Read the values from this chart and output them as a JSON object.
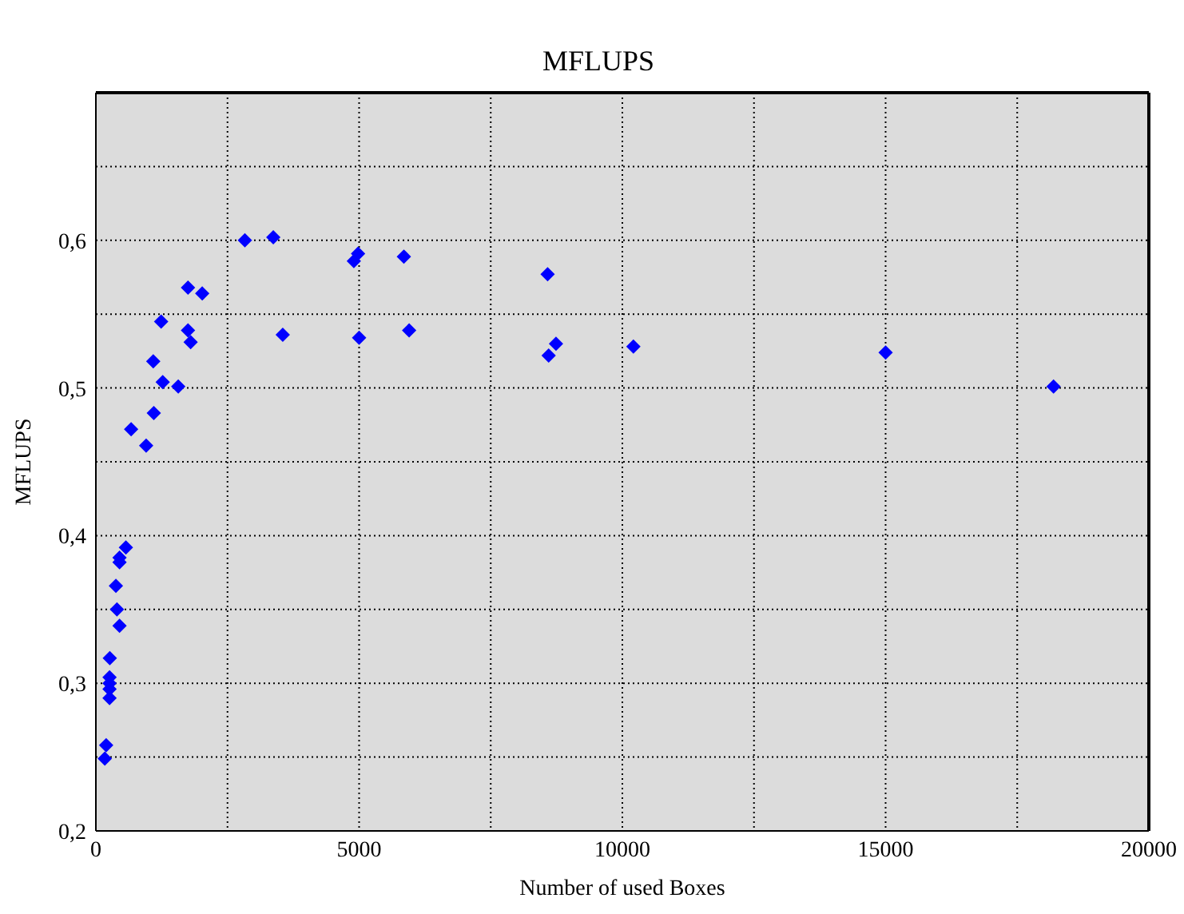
{
  "chart_data": {
    "type": "scatter",
    "title": "MFLUPS",
    "xlabel": "Number of used Boxes",
    "ylabel": "MFLUPS",
    "x": [
      170,
      195,
      260,
      260,
      260,
      260,
      265,
      450,
      400,
      380,
      450,
      450,
      570,
      670,
      955,
      1100,
      1090,
      1270,
      1565,
      1240,
      1750,
      1800,
      1750,
      2020,
      2830,
      3370,
      4900,
      4980,
      5850,
      3550,
      5000,
      5950,
      8580,
      8600,
      8740,
      10210,
      15000,
      18190
    ],
    "series": [
      {
        "color": "#0000ff",
        "values": [
          0.249,
          0.258,
          0.304,
          0.3,
          0.296,
          0.29,
          0.317,
          0.339,
          0.35,
          0.366,
          0.382,
          0.385,
          0.392,
          0.472,
          0.461,
          0.483,
          0.518,
          0.504,
          0.501,
          0.545,
          0.539,
          0.531,
          0.568,
          0.564,
          0.6,
          0.602,
          0.586,
          0.591,
          0.589,
          0.536,
          0.534,
          0.539,
          0.577,
          0.522,
          0.53,
          0.528,
          0.524,
          0.501
        ]
      }
    ],
    "xlim": [
      0,
      20000
    ],
    "ylim": [
      0.2,
      0.7
    ],
    "xticks": [
      0,
      {
        "value": 2500,
        "label": null
      },
      5000,
      {
        "value": 7500,
        "label": null
      },
      10000,
      {
        "value": 12500,
        "label": null
      },
      15000,
      {
        "value": 17500,
        "label": null
      },
      20000
    ],
    "yticks": [
      {
        "value": 0.2,
        "label": "0,2"
      },
      {
        "value": 0.25,
        "label": null
      },
      {
        "value": 0.3,
        "label": "0,3"
      },
      {
        "value": 0.35,
        "label": null
      },
      {
        "value": 0.4,
        "label": "0,4"
      },
      {
        "value": 0.45,
        "label": null
      },
      {
        "value": 0.5,
        "label": "0,5"
      },
      {
        "value": 0.55,
        "label": null
      },
      {
        "value": 0.6,
        "label": "0,6"
      },
      {
        "value": 0.65,
        "label": null
      },
      {
        "value": 0.7,
        "label": null
      }
    ],
    "grid": true,
    "marker": "diamond"
  }
}
